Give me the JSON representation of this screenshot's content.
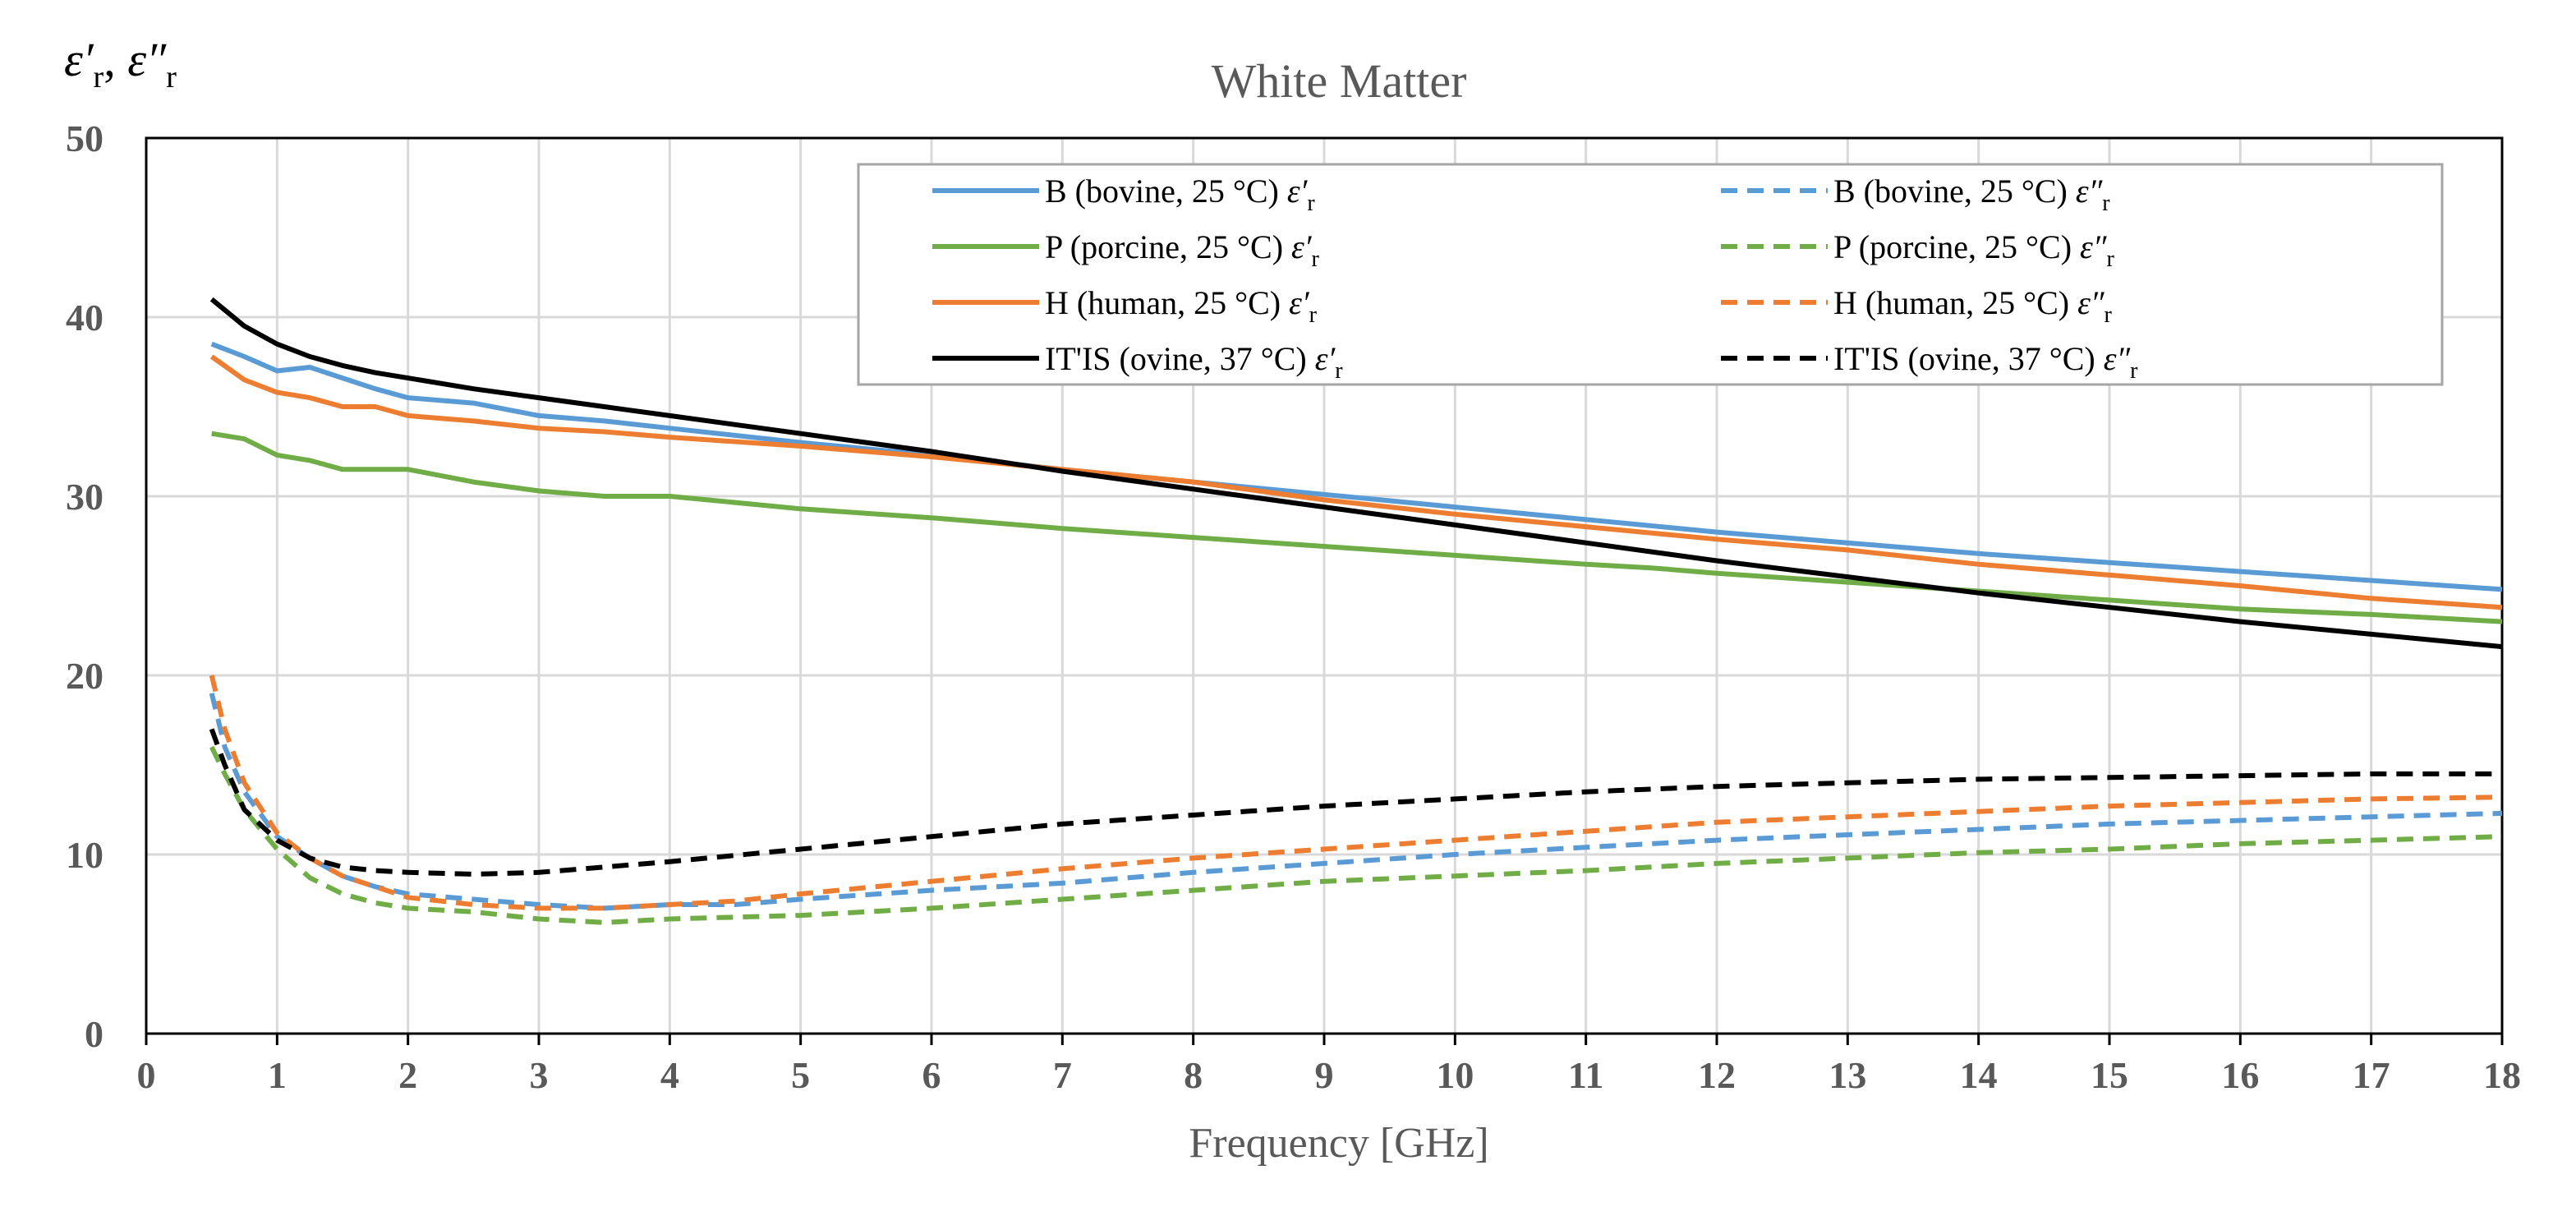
{
  "chart_data": {
    "type": "line",
    "title": "White Matter",
    "xlabel": "Frequency [GHz]",
    "ylabel": "ε′r, ε″r",
    "xlim": [
      0,
      18
    ],
    "ylim": [
      0,
      50
    ],
    "xticks": [
      0,
      1,
      2,
      3,
      4,
      5,
      6,
      7,
      8,
      9,
      10,
      11,
      12,
      13,
      14,
      15,
      16,
      17,
      18
    ],
    "yticks": [
      0,
      10,
      20,
      30,
      40,
      50
    ],
    "grid": true,
    "legend_position": "top-center",
    "series": [
      {
        "name": "B (bovine, 25 °C) ε′r",
        "color": "#5B9BD5",
        "style": "solid",
        "x": [
          0.5,
          0.75,
          1,
          1.25,
          1.5,
          1.75,
          2,
          2.5,
          3,
          3.5,
          4,
          5,
          6,
          7,
          8,
          9,
          10,
          11,
          12,
          13,
          14,
          15,
          16,
          17,
          18
        ],
        "y": [
          38.5,
          37.8,
          37.0,
          37.2,
          36.6,
          36.0,
          35.5,
          35.2,
          34.5,
          34.2,
          33.8,
          33.0,
          32.3,
          31.5,
          30.8,
          30.1,
          29.4,
          28.7,
          28.0,
          27.4,
          26.8,
          26.3,
          25.8,
          25.3,
          24.8
        ]
      },
      {
        "name": "P (porcine, 25 °C) ε′r",
        "color": "#70AD47",
        "style": "solid",
        "x": [
          0.5,
          0.75,
          1,
          1.25,
          1.5,
          1.75,
          2,
          2.5,
          3,
          3.5,
          4,
          5,
          6,
          7,
          8,
          9,
          10,
          11,
          11.5,
          12,
          13,
          14,
          15,
          16,
          17,
          18
        ],
        "y": [
          33.5,
          33.2,
          32.3,
          32.0,
          31.5,
          31.5,
          31.5,
          30.8,
          30.3,
          30.0,
          30.0,
          29.3,
          28.8,
          28.2,
          27.7,
          27.2,
          26.7,
          26.2,
          26.0,
          25.7,
          25.2,
          24.7,
          24.2,
          23.7,
          23.4,
          23.0
        ]
      },
      {
        "name": "H (human, 25 °C) ε′r",
        "color": "#ED7D31",
        "style": "solid",
        "x": [
          0.5,
          0.75,
          1,
          1.25,
          1.5,
          1.75,
          2,
          2.5,
          3,
          3.5,
          4,
          5,
          6,
          7,
          8,
          9,
          10,
          11,
          12,
          13,
          14,
          15,
          16,
          17,
          18
        ],
        "y": [
          37.8,
          36.5,
          35.8,
          35.5,
          35.0,
          35.0,
          34.5,
          34.2,
          33.8,
          33.6,
          33.3,
          32.8,
          32.2,
          31.5,
          30.8,
          29.8,
          29.0,
          28.3,
          27.6,
          27.0,
          26.2,
          25.6,
          25.0,
          24.3,
          23.8
        ]
      },
      {
        "name": "IT'IS (ovine, 37 °C) ε′r",
        "color": "#000000",
        "style": "solid",
        "x": [
          0.5,
          0.75,
          1,
          1.25,
          1.5,
          1.75,
          2,
          2.5,
          3,
          3.5,
          4,
          5,
          6,
          7,
          8,
          9,
          10,
          11,
          12,
          13,
          14,
          15,
          16,
          17,
          18
        ],
        "y": [
          41.0,
          39.5,
          38.5,
          37.8,
          37.3,
          36.9,
          36.6,
          36.0,
          35.5,
          35.0,
          34.5,
          33.5,
          32.5,
          31.4,
          30.4,
          29.4,
          28.4,
          27.4,
          26.4,
          25.5,
          24.6,
          23.8,
          23.0,
          22.3,
          21.6
        ]
      },
      {
        "name": "B (bovine, 25 °C) ε″r",
        "color": "#5B9BD5",
        "style": "dashed",
        "x": [
          0.5,
          0.6,
          0.75,
          1,
          1.25,
          1.5,
          1.75,
          2,
          2.5,
          3,
          3.5,
          4,
          4.5,
          5,
          6,
          7,
          8,
          9,
          10,
          11,
          12,
          13,
          14,
          15,
          16,
          17,
          18
        ],
        "y": [
          19.0,
          16.0,
          13.5,
          11.0,
          9.8,
          8.8,
          8.2,
          7.8,
          7.5,
          7.2,
          7.0,
          7.2,
          7.2,
          7.5,
          8.0,
          8.4,
          9.0,
          9.5,
          10.0,
          10.4,
          10.8,
          11.1,
          11.4,
          11.7,
          11.9,
          12.1,
          12.3
        ]
      },
      {
        "name": "P (porcine, 25 °C) ε″r",
        "color": "#70AD47",
        "style": "dashed",
        "x": [
          0.5,
          0.6,
          0.75,
          1,
          1.25,
          1.5,
          1.75,
          2,
          2.5,
          3,
          3.5,
          4,
          4.5,
          5,
          6,
          7,
          8,
          9,
          10,
          11,
          12,
          13,
          14,
          15,
          16,
          17,
          18
        ],
        "y": [
          16.0,
          14.5,
          12.5,
          10.3,
          8.7,
          7.8,
          7.3,
          7.0,
          6.8,
          6.4,
          6.2,
          6.4,
          6.5,
          6.6,
          7.0,
          7.5,
          8.0,
          8.5,
          8.8,
          9.1,
          9.5,
          9.8,
          10.1,
          10.3,
          10.6,
          10.8,
          11.0
        ]
      },
      {
        "name": "H (human, 25 °C) ε″r",
        "color": "#ED7D31",
        "style": "dashed",
        "x": [
          0.5,
          0.6,
          0.75,
          1,
          1.25,
          1.5,
          1.75,
          2,
          2.5,
          3,
          3.5,
          4,
          4.5,
          5,
          6,
          7,
          8,
          9,
          10,
          11,
          12,
          13,
          14,
          15,
          16,
          17,
          18
        ],
        "y": [
          20.0,
          17.0,
          14.0,
          11.2,
          9.8,
          8.8,
          8.2,
          7.6,
          7.2,
          7.0,
          7.0,
          7.2,
          7.4,
          7.8,
          8.5,
          9.2,
          9.8,
          10.3,
          10.8,
          11.3,
          11.8,
          12.1,
          12.4,
          12.7,
          12.9,
          13.1,
          13.2
        ]
      },
      {
        "name": "IT'IS (ovine, 37 °C) ε″r",
        "color": "#000000",
        "style": "dashed",
        "x": [
          0.5,
          0.6,
          0.75,
          1,
          1.25,
          1.5,
          1.75,
          2,
          2.5,
          3,
          3.5,
          4,
          5,
          6,
          7,
          8,
          9,
          10,
          11,
          12,
          13,
          14,
          15,
          16,
          17,
          18
        ],
        "y": [
          17.0,
          15.0,
          12.5,
          10.8,
          9.8,
          9.3,
          9.1,
          9.0,
          8.9,
          9.0,
          9.3,
          9.6,
          10.3,
          11.0,
          11.7,
          12.2,
          12.7,
          13.1,
          13.5,
          13.8,
          14.0,
          14.2,
          14.3,
          14.4,
          14.5,
          14.5
        ]
      }
    ]
  },
  "legend_left": [
    {
      "main": "B (bovine, 25 °C) ",
      "sym": "ε′",
      "sub": "r"
    },
    {
      "main": "P (porcine, 25 °C) ",
      "sym": "ε′",
      "sub": "r"
    },
    {
      "main": "H (human, 25 °C) ",
      "sym": "ε′",
      "sub": "r"
    },
    {
      "main": "IT'IS (ovine, 37 °C) ",
      "sym": "ε′",
      "sub": "r"
    }
  ],
  "legend_right": [
    {
      "main": "B (bovine, 25 °C) ",
      "sym": "ε″",
      "sub": "r"
    },
    {
      "main": "P (porcine, 25 °C) ",
      "sym": "ε″",
      "sub": "r"
    },
    {
      "main": "H (human, 25 °C) ",
      "sym": "ε″",
      "sub": "r"
    },
    {
      "main": "IT'IS (ovine, 37 °C) ",
      "sym": "ε″",
      "sub": "r"
    }
  ],
  "ylabel_parts": {
    "sym1": "ε′",
    "sub1": "r",
    "sep": ", ",
    "sym2": "ε″",
    "sub2": "r"
  }
}
